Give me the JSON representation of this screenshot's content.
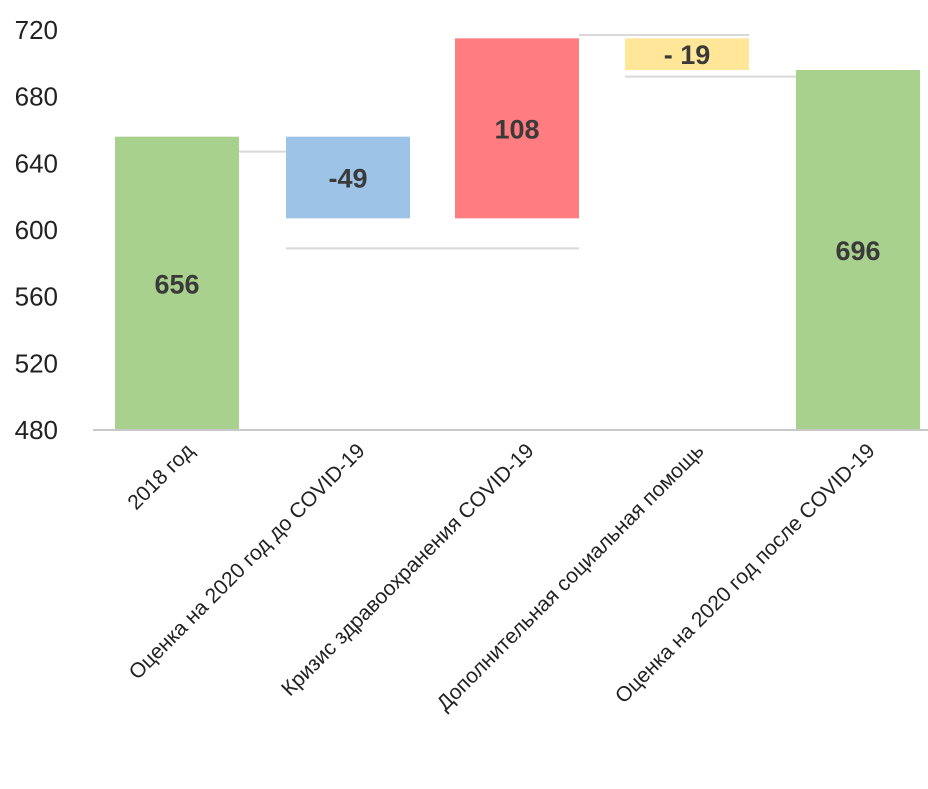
{
  "chart_data": {
    "type": "bar",
    "subtype": "waterfall",
    "title": "",
    "xlabel": "",
    "ylabel": "",
    "ylim": [
      480,
      720
    ],
    "yticks": [
      480,
      520,
      560,
      600,
      640,
      680,
      720
    ],
    "grid": false,
    "legend": "none",
    "categories": [
      "2018 год",
      "Оценка на 2020 год до COVID-19",
      "Кризис здравоохранения COVID-19",
      "Дополнительная социальная помощь",
      "Оценка на 2020 год после COVID-19"
    ],
    "bars": [
      {
        "kind": "total",
        "start": 480,
        "end": 656,
        "label": "656",
        "color": "#a9d18e"
      },
      {
        "kind": "delta",
        "start": 656,
        "end": 607,
        "label": "-49",
        "color": "#9dc3e6"
      },
      {
        "kind": "delta",
        "start": 607,
        "end": 715,
        "label": "108",
        "color": "#ff7c80"
      },
      {
        "kind": "delta",
        "start": 715,
        "end": 696,
        "label": "- 19",
        "color": "#ffe699"
      },
      {
        "kind": "total",
        "start": 480,
        "end": 696,
        "label": "696",
        "color": "#a9d18e"
      }
    ],
    "connector_levels": [
      647,
      589,
      717,
      692
    ],
    "colors": {
      "total": "#a9d18e",
      "decrease_blue": "#9dc3e6",
      "increase_red": "#ff7c80",
      "decrease_yellow": "#ffe699",
      "axis": "#c8c8c8",
      "connector": "#d9d9d9"
    }
  }
}
